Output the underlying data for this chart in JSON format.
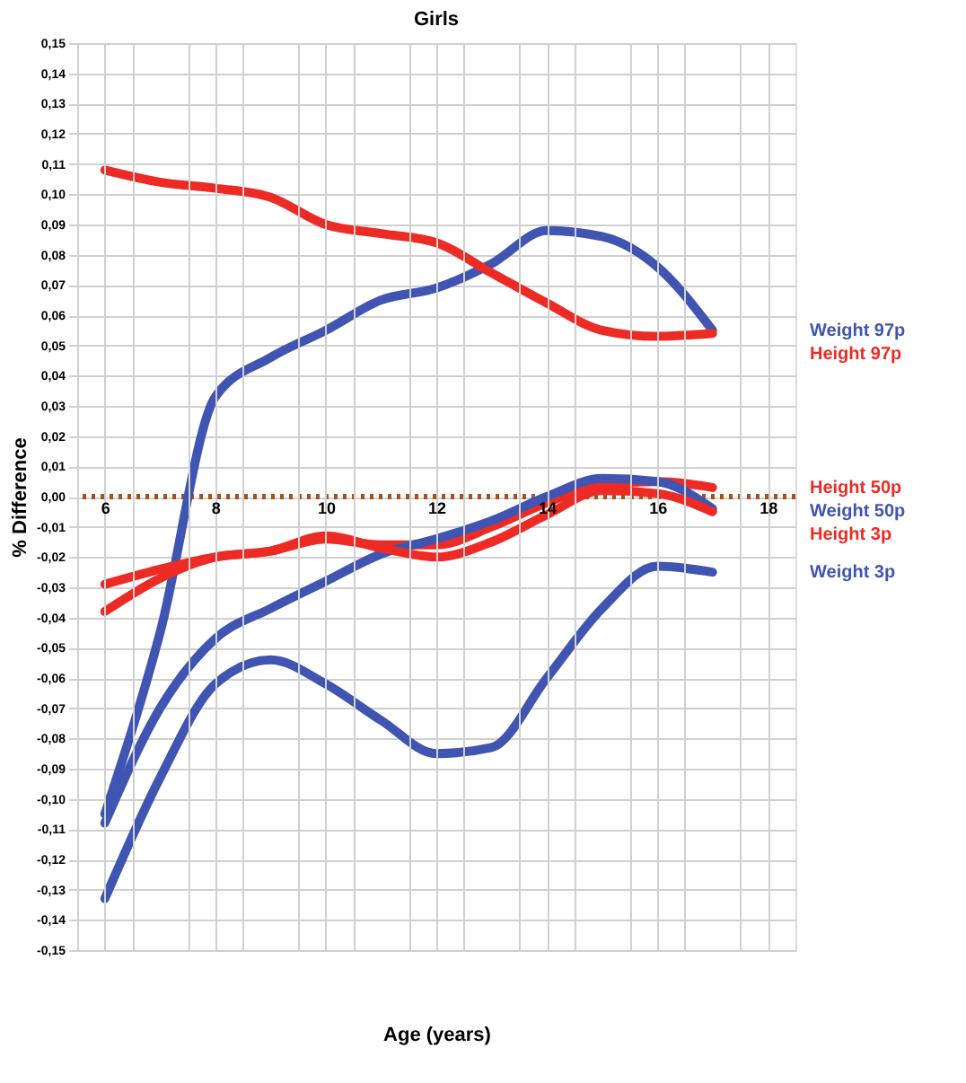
{
  "chart_data": {
    "type": "line",
    "title": "Girls",
    "xlabel": "Age (years)",
    "ylabel": "% Difference",
    "x": [
      6,
      7,
      8,
      9,
      10,
      11,
      12,
      13,
      14,
      15,
      16,
      17
    ],
    "xlim": [
      5.5,
      18.5
    ],
    "xticks": [
      6,
      {
        "value": 6.5,
        "label": null
      },
      {
        "value": 7.5,
        "label": null
      },
      8,
      {
        "value": 8.5,
        "label": null
      },
      {
        "value": 9.5,
        "label": null
      },
      10,
      {
        "value": 10.5,
        "label": null
      },
      {
        "value": 11.5,
        "label": null
      },
      12,
      {
        "value": 12.5,
        "label": null
      },
      {
        "value": 13.5,
        "label": null
      },
      14,
      {
        "value": 14.5,
        "label": null
      },
      {
        "value": 15.5,
        "label": null
      },
      16,
      {
        "value": 16.5,
        "label": null
      },
      {
        "value": 17.5,
        "label": null
      },
      18
    ],
    "ylim": [
      -0.15,
      0.15
    ],
    "yticks": [
      {
        "value": 0.15,
        "label": "0,15"
      },
      {
        "value": 0.14,
        "label": "0,14"
      },
      {
        "value": 0.13,
        "label": "0,13"
      },
      {
        "value": 0.12,
        "label": "0,12"
      },
      {
        "value": 0.11,
        "label": "0,11"
      },
      {
        "value": 0.1,
        "label": "0,10"
      },
      {
        "value": 0.09,
        "label": "0,09"
      },
      {
        "value": 0.08,
        "label": "0,08"
      },
      {
        "value": 0.07,
        "label": "0,07"
      },
      {
        "value": 0.06,
        "label": "0,06"
      },
      {
        "value": 0.05,
        "label": "0,05"
      },
      {
        "value": 0.04,
        "label": "0,04"
      },
      {
        "value": 0.03,
        "label": "0,03"
      },
      {
        "value": 0.02,
        "label": "0,02"
      },
      {
        "value": 0.01,
        "label": "0,01"
      },
      {
        "value": 0,
        "label": "0,00"
      },
      {
        "value": -0.01,
        "label": "-0,01"
      },
      {
        "value": -0.02,
        "label": "-0,02"
      },
      {
        "value": -0.03,
        "label": "-0,03"
      },
      {
        "value": -0.04,
        "label": "-0,04"
      },
      {
        "value": -0.05,
        "label": "-0,05"
      },
      {
        "value": -0.06,
        "label": "-0,06"
      },
      {
        "value": -0.07,
        "label": "-0,07"
      },
      {
        "value": -0.08,
        "label": "-0,08"
      },
      {
        "value": -0.09,
        "label": "-0,09"
      },
      {
        "value": -0.1,
        "label": "-0,10"
      },
      {
        "value": -0.11,
        "label": "-0,11"
      },
      {
        "value": -0.12,
        "label": "-0,12"
      },
      {
        "value": -0.13,
        "label": "-0,13"
      },
      {
        "value": -0.14,
        "label": "-0,14"
      },
      {
        "value": -0.15,
        "label": "-0,15"
      }
    ],
    "grid": true,
    "marker": "none",
    "line_style": "solid",
    "ref_lines": [
      {
        "axis": "y",
        "value": 0,
        "label": null,
        "color": "#a4521c",
        "line_style": "dotted"
      }
    ],
    "series": [
      {
        "name": "Weight  97p",
        "color": "#4054b2",
        "values": [
          -0.105,
          -0.045,
          0.033,
          0.046,
          0.055,
          0.065,
          0.069,
          0.077,
          0.088,
          0.086,
          0.076,
          0.055
        ]
      },
      {
        "name": "Height  97p",
        "color": "#ee2a24",
        "values": [
          0.108,
          0.104,
          0.102,
          0.099,
          0.09,
          0.087,
          0.084,
          0.074,
          0.064,
          0.055,
          0.053,
          0.054
        ]
      },
      {
        "name": "Height 50p",
        "color": "#ee2a24",
        "values": [
          -0.029,
          -0.024,
          -0.02,
          -0.018,
          -0.014,
          -0.016,
          -0.016,
          -0.01,
          -0.002,
          0.004,
          0.005,
          0.003
        ]
      },
      {
        "name": "Weight 50p",
        "color": "#4054b2",
        "values": [
          -0.108,
          -0.07,
          -0.047,
          -0.037,
          -0.028,
          -0.019,
          -0.014,
          -0.008,
          0.0,
          0.006,
          0.005,
          -0.004
        ]
      },
      {
        "name": "Height 3p",
        "color": "#ee2a24",
        "values": [
          -0.038,
          -0.027,
          -0.02,
          -0.018,
          -0.013,
          -0.017,
          -0.02,
          -0.015,
          -0.006,
          0.002,
          0.001,
          -0.005
        ]
      },
      {
        "name": "Weight 3p",
        "color": "#4054b2",
        "values": [
          -0.133,
          -0.093,
          -0.062,
          -0.054,
          -0.062,
          -0.074,
          -0.085,
          -0.083,
          -0.06,
          -0.037,
          -0.023,
          -0.025
        ]
      }
    ]
  }
}
